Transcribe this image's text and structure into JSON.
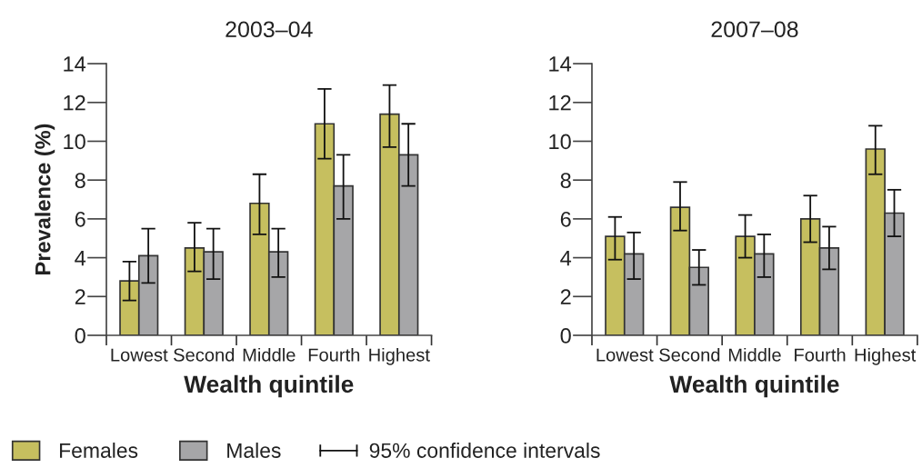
{
  "chart_data": [
    {
      "type": "bar",
      "title": "2003–04",
      "xlabel": "Wealth quintile",
      "ylabel": "Prevalence (%)",
      "categories": [
        "Lowest",
        "Second",
        "Middle",
        "Fourth",
        "Highest"
      ],
      "series": [
        {
          "name": "Females",
          "color": "#c6bf5f",
          "values": [
            2.8,
            4.5,
            6.8,
            10.9,
            11.4
          ],
          "errors": [
            [
              1.8,
              3.8
            ],
            [
              3.3,
              5.8
            ],
            [
              5.2,
              8.3
            ],
            [
              9.1,
              12.7
            ],
            [
              9.7,
              12.9
            ]
          ]
        },
        {
          "name": "Males",
          "color": "#a6a6a8",
          "values": [
            4.1,
            4.3,
            4.3,
            7.7,
            9.3
          ],
          "errors": [
            [
              2.7,
              5.5
            ],
            [
              2.9,
              5.5
            ],
            [
              3.0,
              5.5
            ],
            [
              6.0,
              9.3
            ],
            [
              7.7,
              10.9
            ]
          ]
        }
      ],
      "ylim": [
        0,
        14
      ],
      "yticks": [
        0,
        2,
        4,
        6,
        8,
        10,
        12,
        14
      ],
      "grid": false,
      "legend": "bottom",
      "annotations": [
        "95% confidence intervals"
      ]
    },
    {
      "type": "bar",
      "title": "2007–08",
      "xlabel": "Wealth quintile",
      "categories": [
        "Lowest",
        "Second",
        "Middle",
        "Fourth",
        "Highest"
      ],
      "series": [
        {
          "name": "Females",
          "color": "#c6bf5f",
          "values": [
            5.1,
            6.6,
            5.1,
            6.0,
            9.6
          ],
          "errors": [
            [
              3.9,
              6.1
            ],
            [
              5.4,
              7.9
            ],
            [
              4.0,
              6.2
            ],
            [
              4.8,
              7.2
            ],
            [
              8.3,
              10.8
            ]
          ]
        },
        {
          "name": "Males",
          "color": "#a6a6a8",
          "values": [
            4.2,
            3.5,
            4.2,
            4.5,
            6.3
          ],
          "errors": [
            [
              2.9,
              5.3
            ],
            [
              2.6,
              4.4
            ],
            [
              3.0,
              5.2
            ],
            [
              3.4,
              5.6
            ],
            [
              5.1,
              7.5
            ]
          ]
        }
      ],
      "ylim": [
        0,
        14
      ],
      "yticks": [
        0,
        2,
        4,
        6,
        8,
        10,
        12,
        14
      ],
      "grid": false
    }
  ]
}
